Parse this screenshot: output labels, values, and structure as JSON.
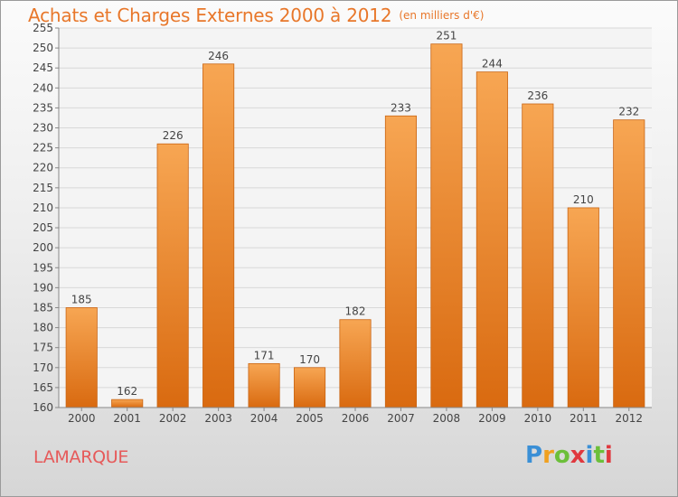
{
  "title": {
    "main": "Achats et Charges Externes 2000 à 2012",
    "unit": "(en milliers d'€)"
  },
  "town": "LAMARQUE",
  "logo": {
    "letters": [
      "P",
      "r",
      "o",
      "x",
      "i",
      "t",
      "i"
    ],
    "colors": [
      "#3a8fd6",
      "#f0a020",
      "#6cbf3a",
      "#e0383e",
      "#3a8fd6",
      "#6cbf3a",
      "#e0383e"
    ]
  },
  "colors": {
    "bar_top": "#f7a653",
    "bar_bottom": "#d96a10",
    "bar_edge": "#c96514",
    "title": "#e8772a",
    "town": "#e65a5a"
  },
  "chart_data": {
    "type": "bar",
    "title": "Achats et Charges Externes 2000 à 2012",
    "subtitle": "(en milliers d'€)",
    "xlabel": "",
    "ylabel": "",
    "categories": [
      "2000",
      "2001",
      "2002",
      "2003",
      "2004",
      "2005",
      "2006",
      "2007",
      "2008",
      "2009",
      "2010",
      "2011",
      "2012"
    ],
    "values": [
      185,
      162,
      226,
      246,
      171,
      170,
      182,
      233,
      251,
      244,
      236,
      210,
      232
    ],
    "ylim": [
      160,
      255
    ],
    "ytick_step": 5,
    "grid": true,
    "data_labels": true
  }
}
